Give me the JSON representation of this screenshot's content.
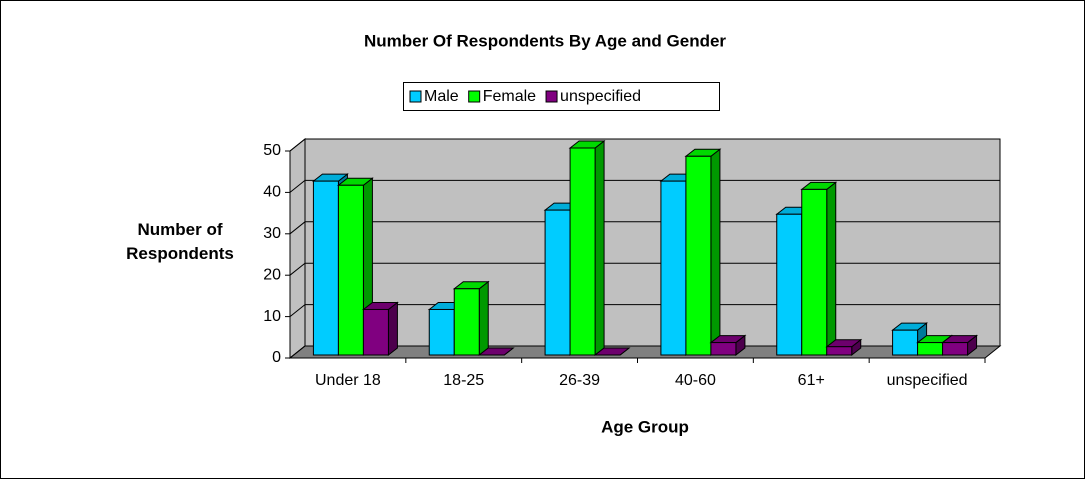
{
  "chart_data": {
    "type": "bar3d",
    "title": "Number Of Respondents By Age and Gender",
    "xlabel": "Age Group",
    "ylabel": "Number of Respondents",
    "categories": [
      "Under 18",
      "18-25",
      "26-39",
      "40-60",
      "61+",
      "unspecified"
    ],
    "series": [
      {
        "name": "Male",
        "color": "#00ccff",
        "values": [
          42,
          11,
          35,
          42,
          34,
          6
        ]
      },
      {
        "name": "Female",
        "color": "#00ff00",
        "values": [
          41,
          16,
          50,
          48,
          40,
          3
        ]
      },
      {
        "name": "unspecified",
        "color": "#800080",
        "values": [
          11,
          0,
          0,
          3,
          2,
          3
        ]
      }
    ],
    "ylim": [
      0,
      50
    ],
    "yticks": [
      0,
      10,
      20,
      30,
      40,
      50
    ],
    "grid": true,
    "legend": "top"
  }
}
